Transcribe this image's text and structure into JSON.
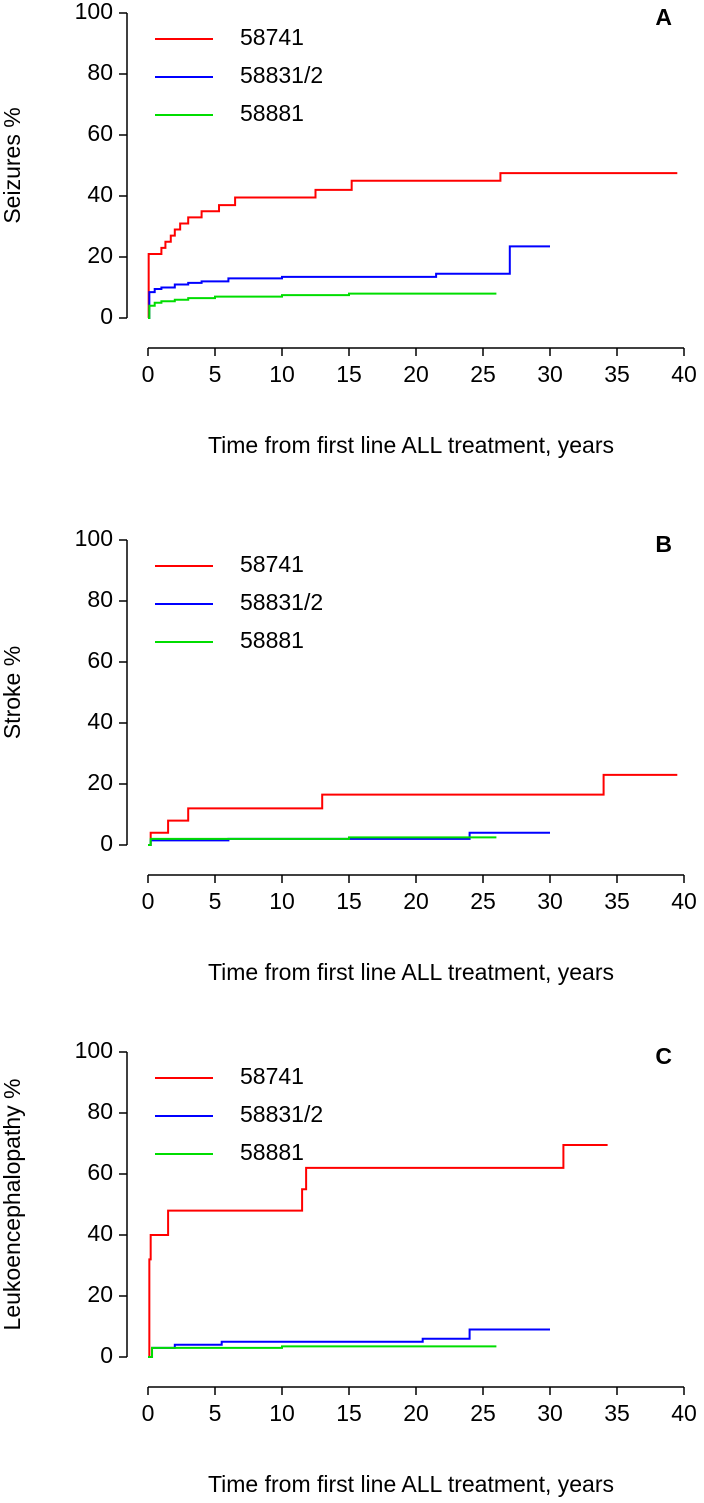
{
  "chart_data": [
    {
      "type": "step",
      "panel_label": "A",
      "y_label": "Seizures %",
      "x_label": "Time from first line ALL treatment, years",
      "xlim": [
        0,
        40
      ],
      "ylim": [
        0,
        100
      ],
      "xticks": [
        0,
        5,
        10,
        15,
        20,
        25,
        30,
        35,
        40
      ],
      "yticks": [
        0,
        20,
        40,
        60,
        80,
        100
      ],
      "legend": "topleft",
      "series": [
        {
          "name": "58741",
          "color": "#ff0000",
          "x": [
            0,
            0.05,
            1,
            1.3,
            1.7,
            2,
            2.4,
            3,
            4,
            5.3,
            6.5,
            12.5,
            15.2,
            26.3,
            39.5
          ],
          "values": [
            0,
            21,
            23,
            25,
            27,
            29,
            31,
            33,
            35,
            37,
            39.5,
            42,
            45,
            47.5,
            47.5
          ]
        },
        {
          "name": "58831/2",
          "color": "#0000ff",
          "x": [
            0,
            0.1,
            0.5,
            1,
            2,
            3,
            4,
            6,
            10,
            21.5,
            27,
            30
          ],
          "values": [
            0,
            8.5,
            9.5,
            10,
            11,
            11.5,
            12,
            13,
            13.5,
            14.5,
            23.5,
            23.5
          ]
        },
        {
          "name": "58881",
          "color": "#00dd00",
          "x": [
            0,
            0.1,
            0.5,
            1,
            2,
            3,
            5,
            10,
            15,
            26
          ],
          "values": [
            0,
            4,
            5,
            5.5,
            6,
            6.5,
            7,
            7.5,
            8,
            8
          ]
        }
      ]
    },
    {
      "type": "step",
      "panel_label": "B",
      "y_label": "Stroke %",
      "x_label": "Time from first line ALL treatment, years",
      "xlim": [
        0,
        40
      ],
      "ylim": [
        0,
        100
      ],
      "xticks": [
        0,
        5,
        10,
        15,
        20,
        25,
        30,
        35,
        40
      ],
      "yticks": [
        0,
        20,
        40,
        60,
        80,
        100
      ],
      "legend": "topleft",
      "series": [
        {
          "name": "58741",
          "color": "#ff0000",
          "x": [
            0,
            0.2,
            1.5,
            3,
            13,
            34,
            39.5
          ],
          "values": [
            0,
            4,
            8,
            12,
            16.5,
            23,
            23
          ]
        },
        {
          "name": "58831/2",
          "color": "#0000ff",
          "x": [
            0,
            0.2,
            6,
            24,
            30
          ],
          "values": [
            0,
            1.5,
            2,
            4,
            4
          ]
        },
        {
          "name": "58881",
          "color": "#00dd00",
          "x": [
            0,
            0.2,
            3,
            15,
            26
          ],
          "values": [
            0,
            2,
            2,
            2.5,
            2.5
          ]
        }
      ]
    },
    {
      "type": "step",
      "panel_label": "C",
      "y_label": "Leukoencephalopathy %",
      "x_label": "Time from first line ALL treatment, years",
      "xlim": [
        0,
        40
      ],
      "ylim": [
        0,
        100
      ],
      "xticks": [
        0,
        5,
        10,
        15,
        20,
        25,
        30,
        35,
        40
      ],
      "yticks": [
        0,
        20,
        40,
        60,
        80,
        100
      ],
      "legend": "topleft",
      "series": [
        {
          "name": "58741",
          "color": "#ff0000",
          "x": [
            0,
            0.1,
            0.2,
            1.5,
            11.5,
            11.8,
            31,
            34.3
          ],
          "values": [
            0,
            32,
            40,
            48,
            55,
            62,
            69.5,
            69.5
          ]
        },
        {
          "name": "58831/2",
          "color": "#0000ff",
          "x": [
            0,
            0.3,
            2,
            5.5,
            20.5,
            24,
            30
          ],
          "values": [
            0,
            3,
            4,
            5,
            6,
            9,
            9
          ]
        },
        {
          "name": "58881",
          "color": "#00dd00",
          "x": [
            0,
            0.3,
            10,
            26
          ],
          "values": [
            0,
            3,
            3.5,
            3.5
          ]
        }
      ]
    }
  ]
}
